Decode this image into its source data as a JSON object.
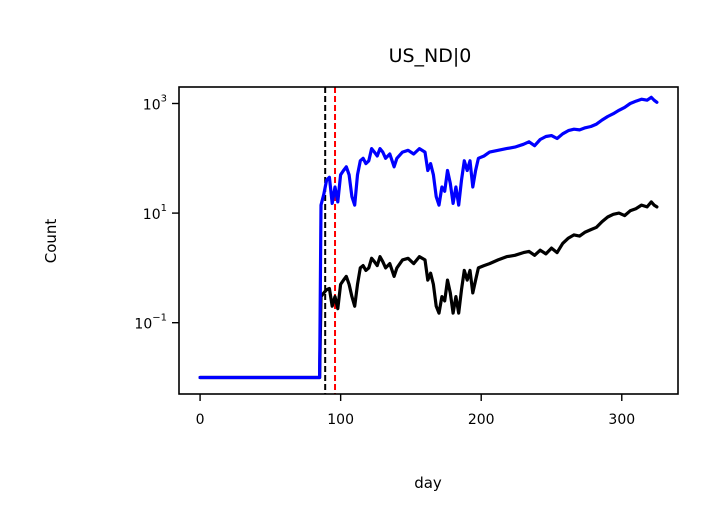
{
  "chart_data": {
    "type": "line",
    "title": "US_ND|0",
    "xlabel": "day",
    "ylabel": "Count",
    "xscale": "linear",
    "yscale": "log",
    "xlim": [
      -15,
      340
    ],
    "ylim": [
      0.005,
      2000
    ],
    "grid": false,
    "xticks": [
      {
        "value": 0,
        "label": "0"
      },
      {
        "value": 100,
        "label": "100"
      },
      {
        "value": 200,
        "label": "200"
      },
      {
        "value": 300,
        "label": "300"
      }
    ],
    "yticks": [
      {
        "value": 0.1,
        "base": "10",
        "exp": "−1"
      },
      {
        "value": 10,
        "base": "10",
        "exp": "1"
      },
      {
        "value": 1000,
        "base": "10",
        "exp": "3"
      }
    ],
    "vlines": [
      {
        "x": 89,
        "color": "#000000",
        "style": "dashed"
      },
      {
        "x": 96,
        "color": "#ff0000",
        "style": "dashed"
      }
    ],
    "series": [
      {
        "color": "#0000ff",
        "points": [
          [
            0,
            0.01
          ],
          [
            20,
            0.01
          ],
          [
            40,
            0.01
          ],
          [
            60,
            0.01
          ],
          [
            80,
            0.01
          ],
          [
            85,
            0.01
          ],
          [
            86,
            14
          ],
          [
            88,
            22
          ],
          [
            90,
            40
          ],
          [
            92,
            45
          ],
          [
            94,
            15
          ],
          [
            96,
            30
          ],
          [
            98,
            16
          ],
          [
            100,
            50
          ],
          [
            102,
            60
          ],
          [
            104,
            70
          ],
          [
            106,
            50
          ],
          [
            108,
            20
          ],
          [
            110,
            14
          ],
          [
            112,
            50
          ],
          [
            114,
            90
          ],
          [
            116,
            100
          ],
          [
            118,
            80
          ],
          [
            120,
            90
          ],
          [
            122,
            150
          ],
          [
            124,
            130
          ],
          [
            126,
            110
          ],
          [
            128,
            150
          ],
          [
            130,
            130
          ],
          [
            132,
            100
          ],
          [
            135,
            120
          ],
          [
            138,
            70
          ],
          [
            140,
            100
          ],
          [
            144,
            130
          ],
          [
            148,
            140
          ],
          [
            152,
            120
          ],
          [
            156,
            150
          ],
          [
            160,
            130
          ],
          [
            162,
            60
          ],
          [
            164,
            80
          ],
          [
            166,
            50
          ],
          [
            168,
            20
          ],
          [
            170,
            14
          ],
          [
            172,
            30
          ],
          [
            174,
            25
          ],
          [
            176,
            60
          ],
          [
            178,
            35
          ],
          [
            180,
            15
          ],
          [
            182,
            30
          ],
          [
            184,
            14
          ],
          [
            186,
            40
          ],
          [
            188,
            90
          ],
          [
            190,
            60
          ],
          [
            192,
            90
          ],
          [
            194,
            30
          ],
          [
            196,
            60
          ],
          [
            198,
            100
          ],
          [
            202,
            110
          ],
          [
            206,
            130
          ],
          [
            212,
            140
          ],
          [
            218,
            150
          ],
          [
            224,
            160
          ],
          [
            230,
            180
          ],
          [
            234,
            200
          ],
          [
            238,
            170
          ],
          [
            242,
            220
          ],
          [
            246,
            250
          ],
          [
            250,
            260
          ],
          [
            254,
            230
          ],
          [
            258,
            280
          ],
          [
            262,
            320
          ],
          [
            266,
            340
          ],
          [
            270,
            330
          ],
          [
            274,
            360
          ],
          [
            278,
            380
          ],
          [
            282,
            420
          ],
          [
            286,
            500
          ],
          [
            290,
            580
          ],
          [
            294,
            650
          ],
          [
            298,
            750
          ],
          [
            302,
            850
          ],
          [
            306,
            1000
          ],
          [
            310,
            1100
          ],
          [
            314,
            1200
          ],
          [
            318,
            1150
          ],
          [
            321,
            1300
          ],
          [
            323,
            1150
          ],
          [
            325,
            1050
          ]
        ]
      },
      {
        "color": "#000000",
        "points": [
          [
            0,
            0.01
          ],
          [
            20,
            0.01
          ],
          [
            40,
            0.01
          ],
          [
            60,
            0.01
          ],
          [
            80,
            0.01
          ],
          [
            85,
            0.01
          ],
          [
            86,
            0.3
          ],
          [
            88,
            0.35
          ],
          [
            90,
            0.4
          ],
          [
            92,
            0.42
          ],
          [
            94,
            0.2
          ],
          [
            96,
            0.3
          ],
          [
            98,
            0.18
          ],
          [
            100,
            0.5
          ],
          [
            102,
            0.6
          ],
          [
            104,
            0.7
          ],
          [
            106,
            0.5
          ],
          [
            108,
            0.3
          ],
          [
            110,
            0.2
          ],
          [
            112,
            0.5
          ],
          [
            114,
            1.0
          ],
          [
            116,
            1.1
          ],
          [
            118,
            0.9
          ],
          [
            120,
            1.0
          ],
          [
            122,
            1.5
          ],
          [
            124,
            1.3
          ],
          [
            126,
            1.1
          ],
          [
            128,
            1.6
          ],
          [
            130,
            1.3
          ],
          [
            132,
            1.0
          ],
          [
            135,
            1.2
          ],
          [
            138,
            0.7
          ],
          [
            140,
            1.0
          ],
          [
            144,
            1.4
          ],
          [
            148,
            1.5
          ],
          [
            152,
            1.2
          ],
          [
            156,
            1.6
          ],
          [
            160,
            1.4
          ],
          [
            162,
            0.6
          ],
          [
            164,
            0.8
          ],
          [
            166,
            0.5
          ],
          [
            168,
            0.2
          ],
          [
            170,
            0.15
          ],
          [
            172,
            0.3
          ],
          [
            174,
            0.25
          ],
          [
            176,
            0.6
          ],
          [
            178,
            0.35
          ],
          [
            180,
            0.15
          ],
          [
            182,
            0.3
          ],
          [
            184,
            0.15
          ],
          [
            186,
            0.4
          ],
          [
            188,
            0.9
          ],
          [
            190,
            0.6
          ],
          [
            192,
            0.9
          ],
          [
            194,
            0.35
          ],
          [
            196,
            0.6
          ],
          [
            198,
            1.0
          ],
          [
            202,
            1.1
          ],
          [
            206,
            1.2
          ],
          [
            212,
            1.4
          ],
          [
            218,
            1.6
          ],
          [
            224,
            1.7
          ],
          [
            230,
            1.9
          ],
          [
            234,
            2.0
          ],
          [
            238,
            1.7
          ],
          [
            242,
            2.1
          ],
          [
            246,
            1.8
          ],
          [
            250,
            2.3
          ],
          [
            254,
            1.9
          ],
          [
            258,
            2.8
          ],
          [
            262,
            3.5
          ],
          [
            266,
            4.0
          ],
          [
            270,
            3.8
          ],
          [
            274,
            4.5
          ],
          [
            278,
            5.0
          ],
          [
            282,
            5.5
          ],
          [
            286,
            7.0
          ],
          [
            290,
            8.5
          ],
          [
            294,
            9.5
          ],
          [
            298,
            10
          ],
          [
            302,
            9
          ],
          [
            306,
            11
          ],
          [
            310,
            12
          ],
          [
            314,
            14
          ],
          [
            318,
            13
          ],
          [
            321,
            16
          ],
          [
            323,
            14
          ],
          [
            325,
            13
          ]
        ]
      }
    ]
  }
}
